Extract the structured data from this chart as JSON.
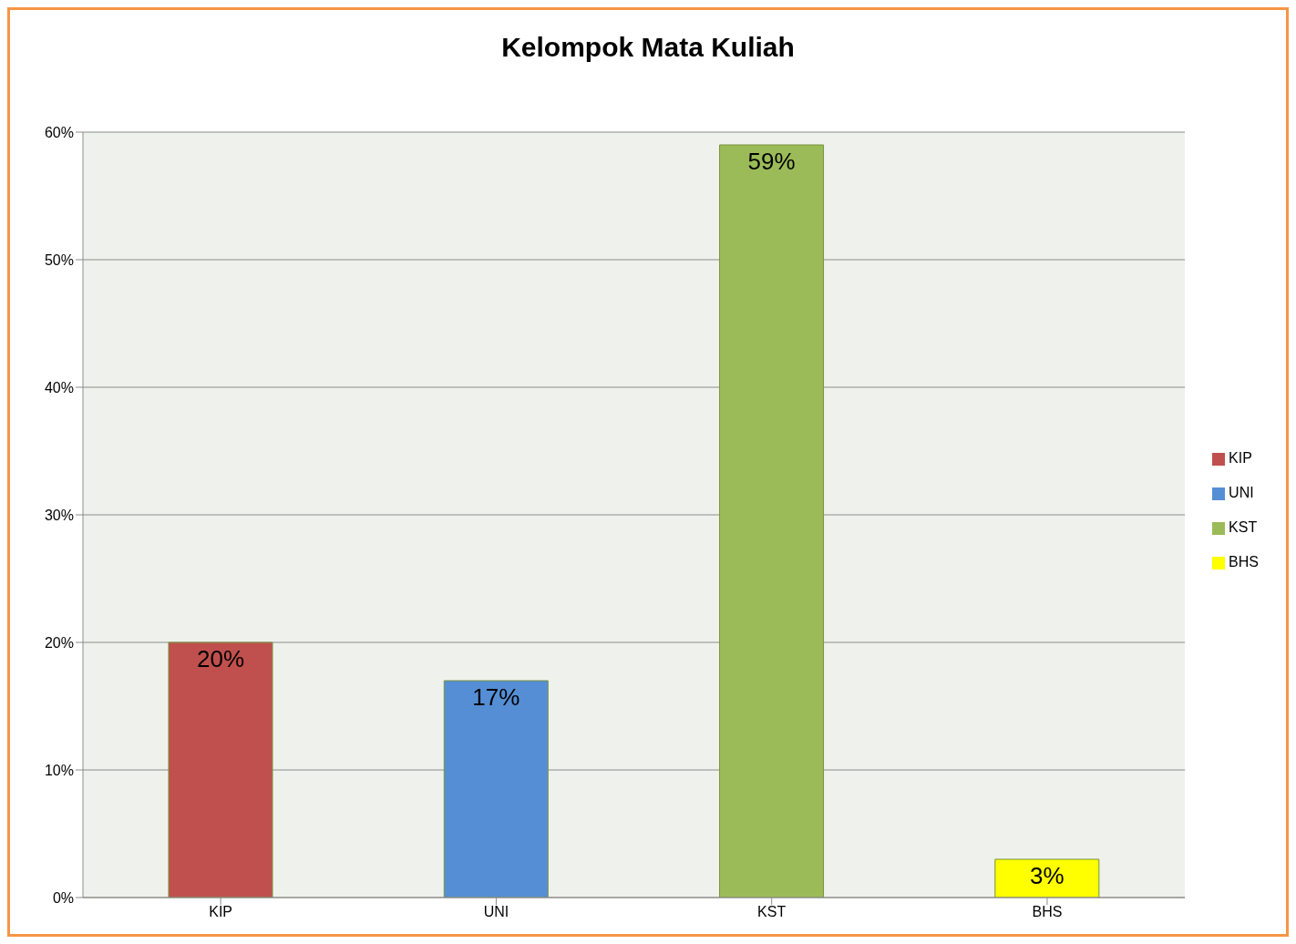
{
  "chart_data": {
    "type": "bar",
    "title": "Kelompok Mata Kuliah",
    "categories": [
      "KIP",
      "UNI",
      "KST",
      "BHS"
    ],
    "series": [
      {
        "name": "KIP",
        "color": "#c0504d",
        "values": [
          20,
          null,
          null,
          null
        ],
        "value_labels": [
          "20%",
          null,
          null,
          null
        ]
      },
      {
        "name": "UNI",
        "color": "#558ed5",
        "values": [
          null,
          17,
          null,
          null
        ],
        "value_labels": [
          null,
          "17%",
          null,
          null
        ]
      },
      {
        "name": "KST",
        "color": "#9bbb59",
        "values": [
          null,
          null,
          59,
          null
        ],
        "value_labels": [
          null,
          null,
          "59%",
          null
        ]
      },
      {
        "name": "BHS",
        "color": "#ffff00",
        "values": [
          null,
          null,
          null,
          3
        ],
        "value_labels": [
          null,
          null,
          null,
          "3%"
        ]
      }
    ],
    "stacked": true,
    "ylim": [
      0,
      60
    ],
    "yticks": [
      {
        "value": 0,
        "label": "0%"
      },
      {
        "value": 10,
        "label": "10%"
      },
      {
        "value": 20,
        "label": "20%"
      },
      {
        "value": 30,
        "label": "30%"
      },
      {
        "value": 40,
        "label": "40%"
      },
      {
        "value": 50,
        "label": "50%"
      },
      {
        "value": 60,
        "label": "60%"
      }
    ],
    "grid": "y",
    "legend": "right"
  }
}
